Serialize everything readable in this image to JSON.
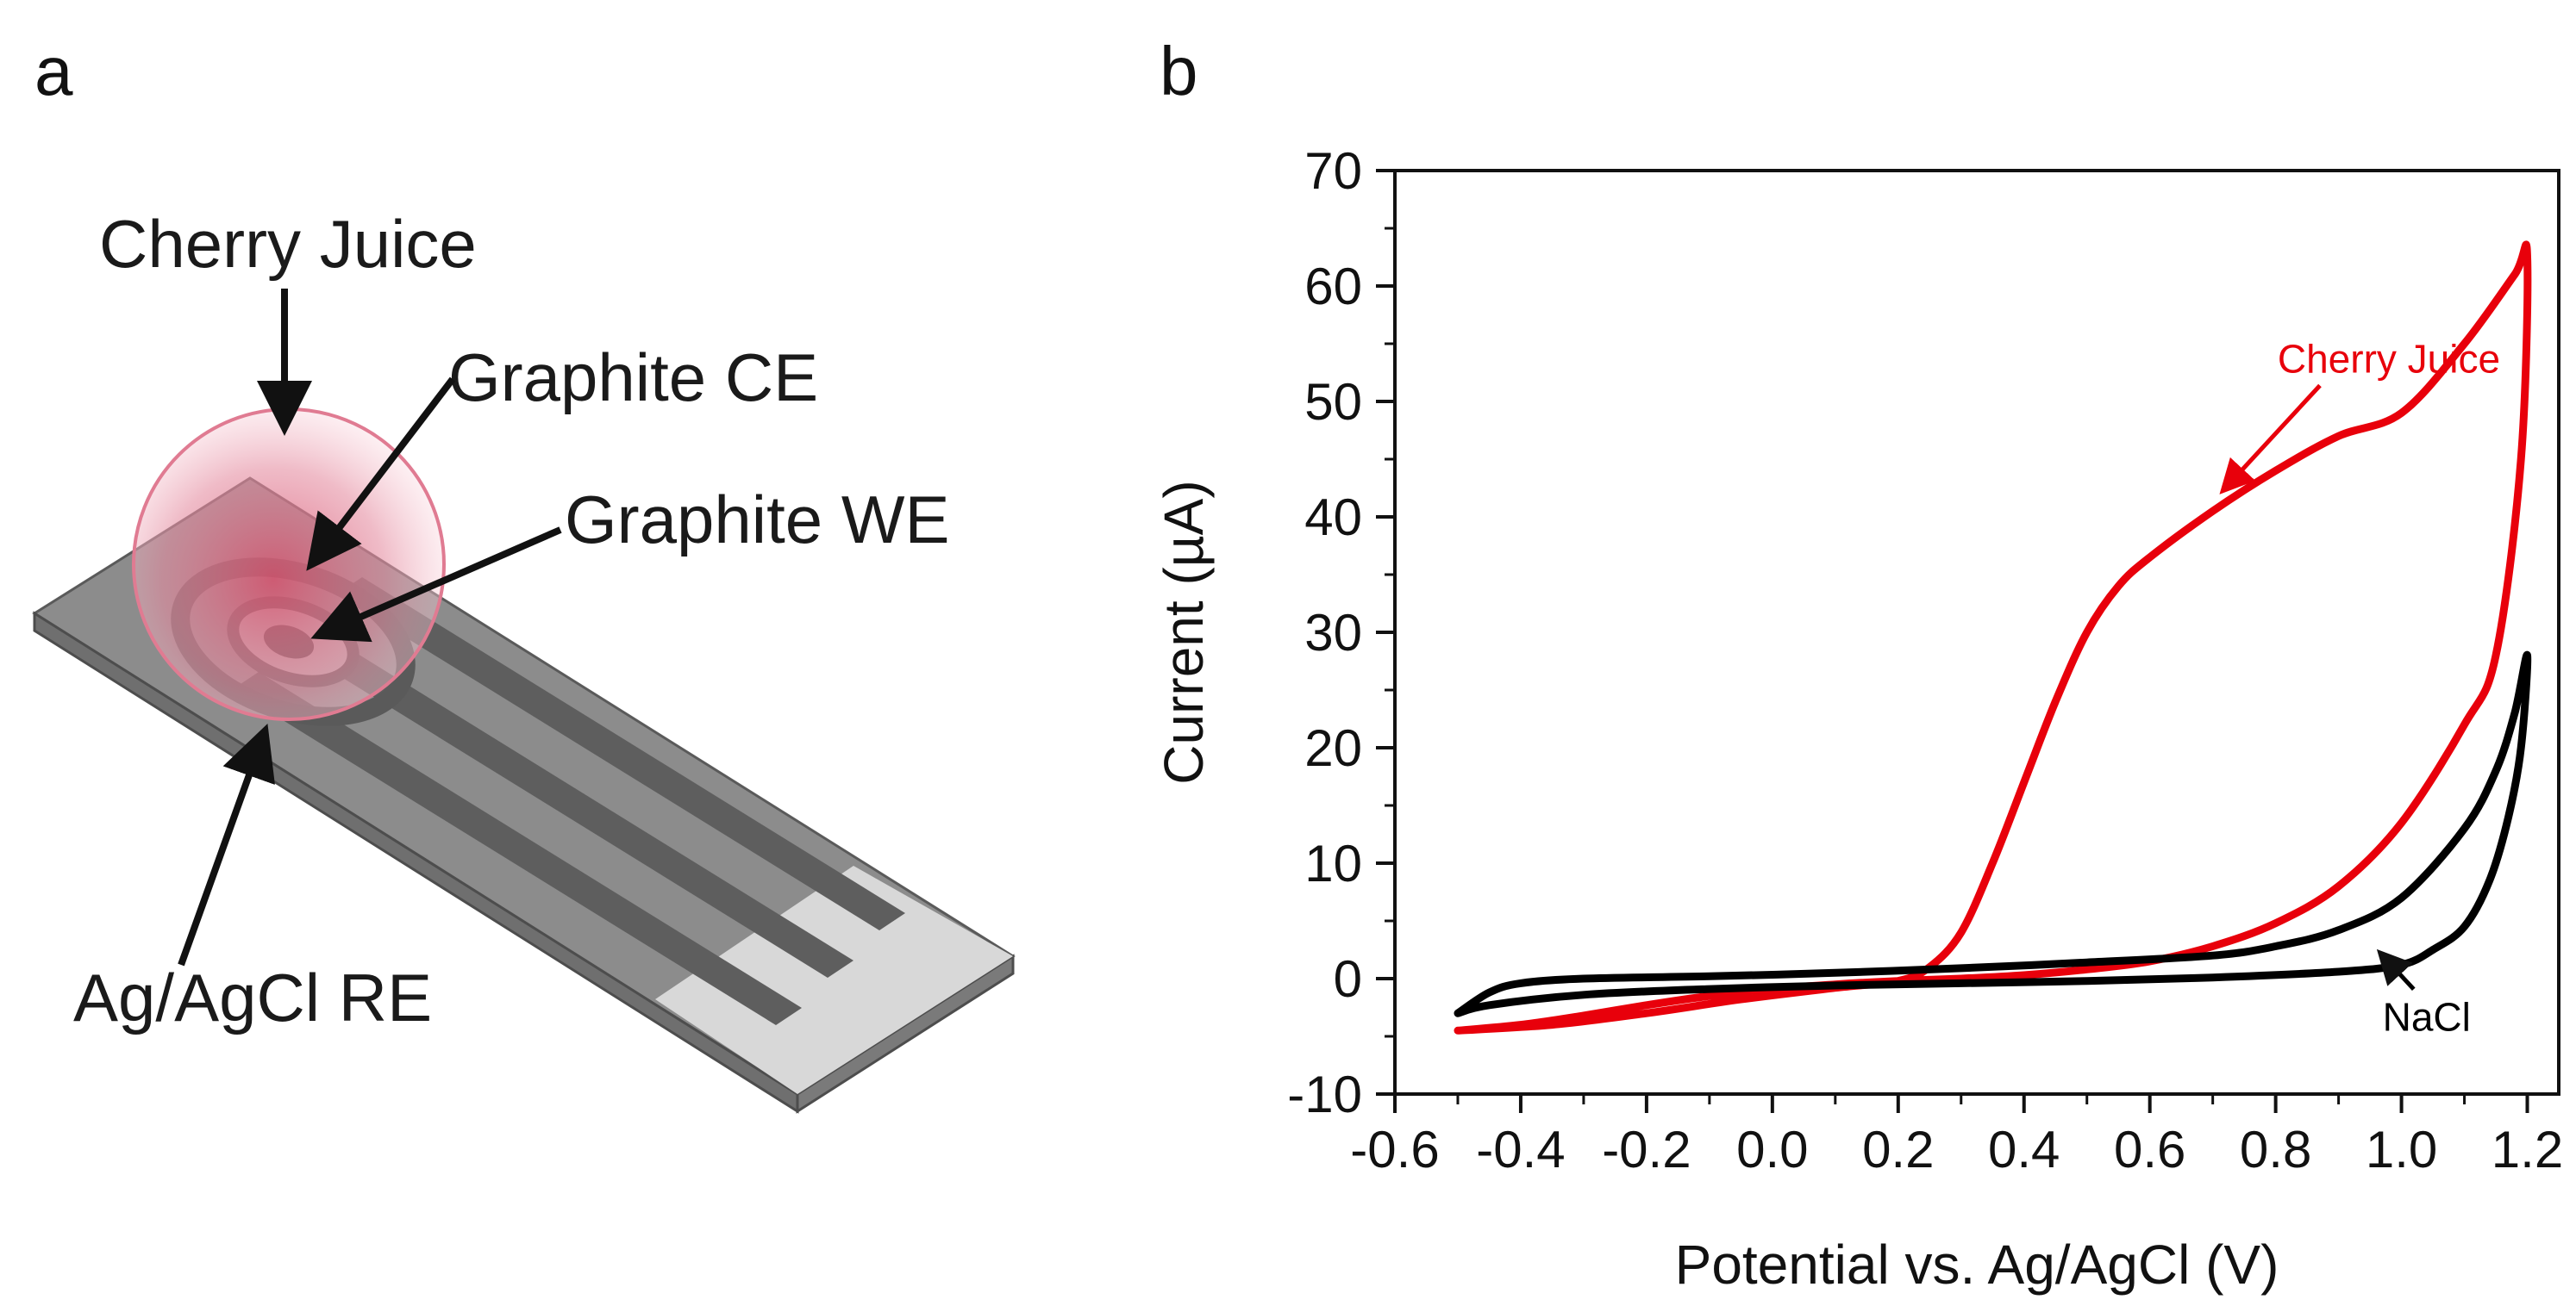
{
  "panel_a": {
    "letter": "a",
    "labels": {
      "cherry_juice": "Cherry Juice",
      "graphite_ce": "Graphite CE",
      "graphite_we": "Graphite WE",
      "ag_agcl_re": "Ag/AgCl RE"
    }
  },
  "panel_b": {
    "letter": "b"
  },
  "chart_data": {
    "type": "line",
    "title": "",
    "xlabel": "Potential vs. Ag/AgCl (V)",
    "ylabel": "Current (µA)",
    "xlim": [
      -0.6,
      1.25
    ],
    "ylim": [
      -10,
      70
    ],
    "xticks": [
      "-0.6",
      "-0.4",
      "-0.2",
      "0.0",
      "0.2",
      "0.4",
      "0.6",
      "0.8",
      "1.0",
      "1.2"
    ],
    "yticks": [
      "-10",
      "0",
      "10",
      "20",
      "30",
      "40",
      "50",
      "60",
      "70"
    ],
    "series": [
      {
        "name": "Cherry Juice",
        "color": "#e8000b",
        "x": [
          -0.5,
          -0.35,
          -0.2,
          -0.05,
          0.1,
          0.2,
          0.25,
          0.3,
          0.35,
          0.4,
          0.45,
          0.5,
          0.55,
          0.6,
          0.7,
          0.8,
          0.9,
          1.0,
          1.1,
          1.18,
          1.2,
          1.19,
          1.15,
          1.1,
          1.0,
          0.9,
          0.8,
          0.7,
          0.6,
          0.5,
          0.4,
          0.3,
          0.2,
          0.1,
          0.0,
          -0.1,
          -0.2,
          -0.3,
          -0.4,
          -0.5
        ],
        "y": [
          -4.5,
          -4.0,
          -3.0,
          -1.8,
          -0.8,
          -0.2,
          1.0,
          4.0,
          10.0,
          17.0,
          24.0,
          30.0,
          34.0,
          36.5,
          40.5,
          44.0,
          47.0,
          49.0,
          55.0,
          61.0,
          62.5,
          45.0,
          28.0,
          22.0,
          13.5,
          8.0,
          4.8,
          2.8,
          1.5,
          0.8,
          0.3,
          0.0,
          -0.2,
          -0.5,
          -0.9,
          -1.5,
          -2.3,
          -3.2,
          -4.0,
          -4.5
        ]
      },
      {
        "name": "NaCl",
        "color": "#000000",
        "x": [
          -0.5,
          -0.45,
          -0.4,
          -0.3,
          -0.1,
          0.1,
          0.3,
          0.5,
          0.7,
          0.8,
          0.9,
          1.0,
          1.1,
          1.15,
          1.18,
          1.2,
          1.19,
          1.17,
          1.14,
          1.1,
          1.05,
          1.0,
          0.9,
          0.7,
          0.5,
          0.3,
          0.1,
          -0.1,
          -0.3,
          -0.45,
          -0.5
        ],
        "y": [
          -3.0,
          -1.2,
          -0.4,
          0.0,
          0.2,
          0.5,
          0.9,
          1.4,
          2.0,
          2.8,
          4.2,
          7.0,
          13.0,
          18.0,
          23.0,
          28.0,
          20.0,
          14.0,
          8.5,
          4.5,
          2.5,
          1.2,
          0.6,
          0.1,
          -0.2,
          -0.4,
          -0.6,
          -0.9,
          -1.4,
          -2.3,
          -3.0
        ]
      }
    ],
    "annotations": [
      {
        "text": "Cherry Juice",
        "color": "#e8000b",
        "x": 0.98,
        "y": 52.5,
        "arrow_to": [
          0.72,
          42.5
        ]
      },
      {
        "text": "NaCl",
        "color": "#000000",
        "x": 1.04,
        "y": -4.5,
        "arrow_to": [
          0.97,
          2.0
        ]
      }
    ]
  }
}
